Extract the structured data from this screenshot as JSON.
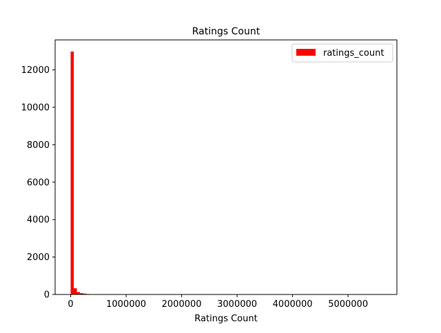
{
  "chart_data": {
    "type": "bar",
    "title": "Ratings Count",
    "xlabel": "Ratings Count",
    "ylabel": "",
    "xlim": [
      -280000,
      5880000
    ],
    "ylim": [
      0,
      13600
    ],
    "xticks": [
      0,
      1000000,
      2000000,
      3000000,
      4000000,
      5000000
    ],
    "xtick_labels": [
      "0",
      "1000000",
      "2000000",
      "3000000",
      "4000000",
      "5000000"
    ],
    "yticks": [
      0,
      2000,
      4000,
      6000,
      8000,
      10000,
      12000
    ],
    "ytick_labels": [
      "0",
      "2000",
      "4000",
      "6000",
      "8000",
      "10000",
      "12000"
    ],
    "bin_width": 56000,
    "bins_start": 0,
    "series": [
      {
        "name": "ratings_count",
        "color": "#ff0000",
        "values": [
          12980,
          330,
          130,
          70,
          45,
          25,
          15,
          10,
          8,
          5,
          4,
          3
        ]
      }
    ],
    "legend": {
      "position": "top-right",
      "entries": [
        "ratings_count"
      ]
    },
    "grid": false
  }
}
